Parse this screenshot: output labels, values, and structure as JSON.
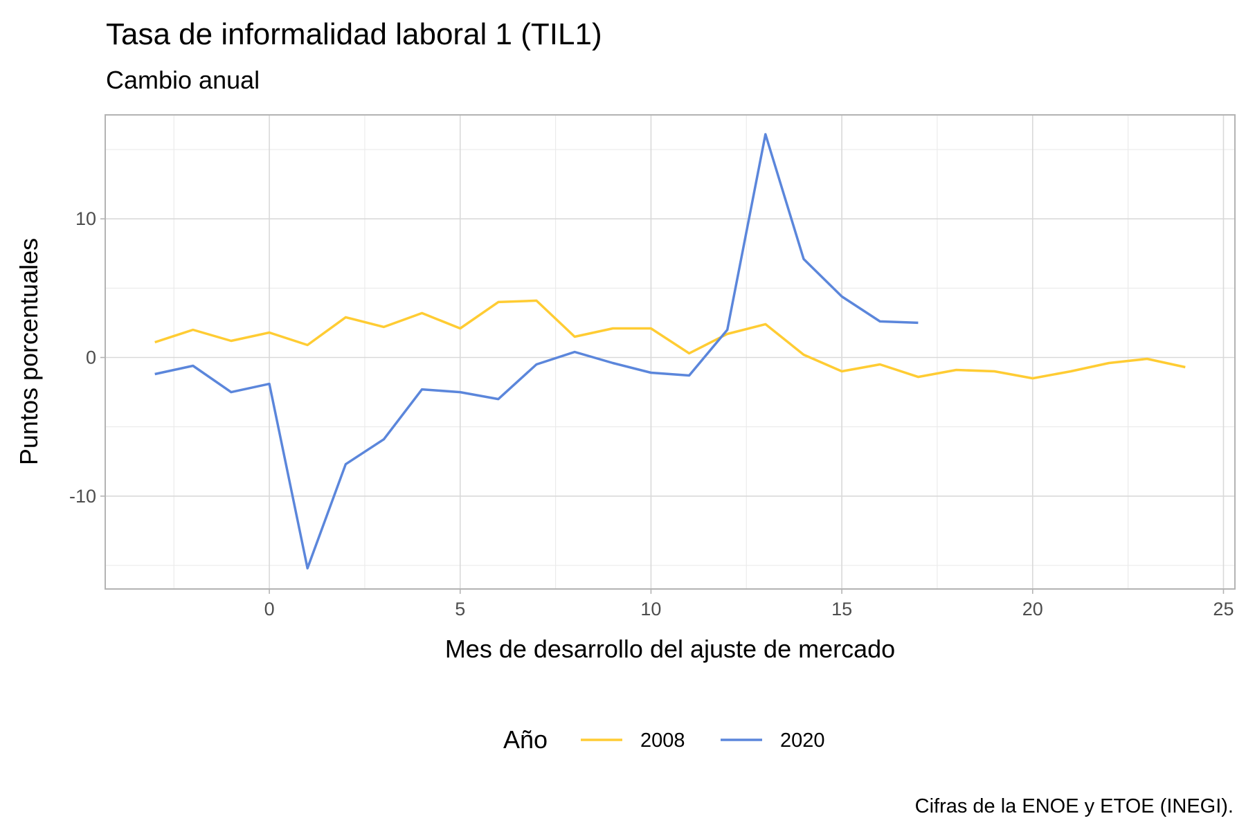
{
  "chart_data": {
    "type": "line",
    "title": "Tasa de informalidad laboral 1 (TIL1)",
    "subtitle": "Cambio anual",
    "xlabel": "Mes de desarrollo del ajuste de mercado",
    "ylabel": "Puntos porcentuales",
    "caption": "Cifras de la ENOE y ETOE (INEGI).",
    "xlim": [
      -4.3,
      25.3
    ],
    "ylim": [
      -16.7,
      17.5
    ],
    "x_ticks": [
      0,
      5,
      10,
      15,
      20,
      25
    ],
    "x_tick_labels": [
      "0",
      "5",
      "10",
      "15",
      "20",
      "25"
    ],
    "y_ticks": [
      -10,
      0,
      10
    ],
    "y_tick_labels": [
      "-10",
      "0",
      "10"
    ],
    "grid": true,
    "legend": {
      "title": "Año",
      "position": "bottom"
    },
    "series": [
      {
        "name": "2008",
        "color": "#FFCC33",
        "x": [
          -3,
          -2,
          -1,
          0,
          1,
          2,
          3,
          4,
          5,
          6,
          7,
          8,
          9,
          10,
          11,
          12,
          13,
          14,
          15,
          16,
          17,
          18,
          19,
          20,
          21,
          22,
          23,
          24
        ],
        "y": [
          1.1,
          2.0,
          1.2,
          1.8,
          0.9,
          2.9,
          2.2,
          3.2,
          2.1,
          4.0,
          4.1,
          1.5,
          2.1,
          2.1,
          0.3,
          1.7,
          2.4,
          0.2,
          -1.0,
          -0.5,
          -1.4,
          -0.9,
          -1.0,
          -1.5,
          -1.0,
          -0.4,
          -0.1,
          -0.7
        ]
      },
      {
        "name": "2020",
        "color": "#5B86DB",
        "x": [
          -3,
          -2,
          -1,
          0,
          1,
          2,
          3,
          4,
          5,
          6,
          7,
          8,
          9,
          10,
          11,
          12,
          13,
          14,
          15,
          16,
          17
        ],
        "y": [
          -1.2,
          -0.6,
          -2.5,
          -1.9,
          -15.2,
          -7.7,
          -5.9,
          -2.3,
          -2.5,
          -3.0,
          -0.5,
          0.4,
          -0.4,
          -1.1,
          -1.3,
          2.0,
          16.1,
          7.1,
          4.4,
          2.6,
          2.5
        ]
      }
    ]
  }
}
